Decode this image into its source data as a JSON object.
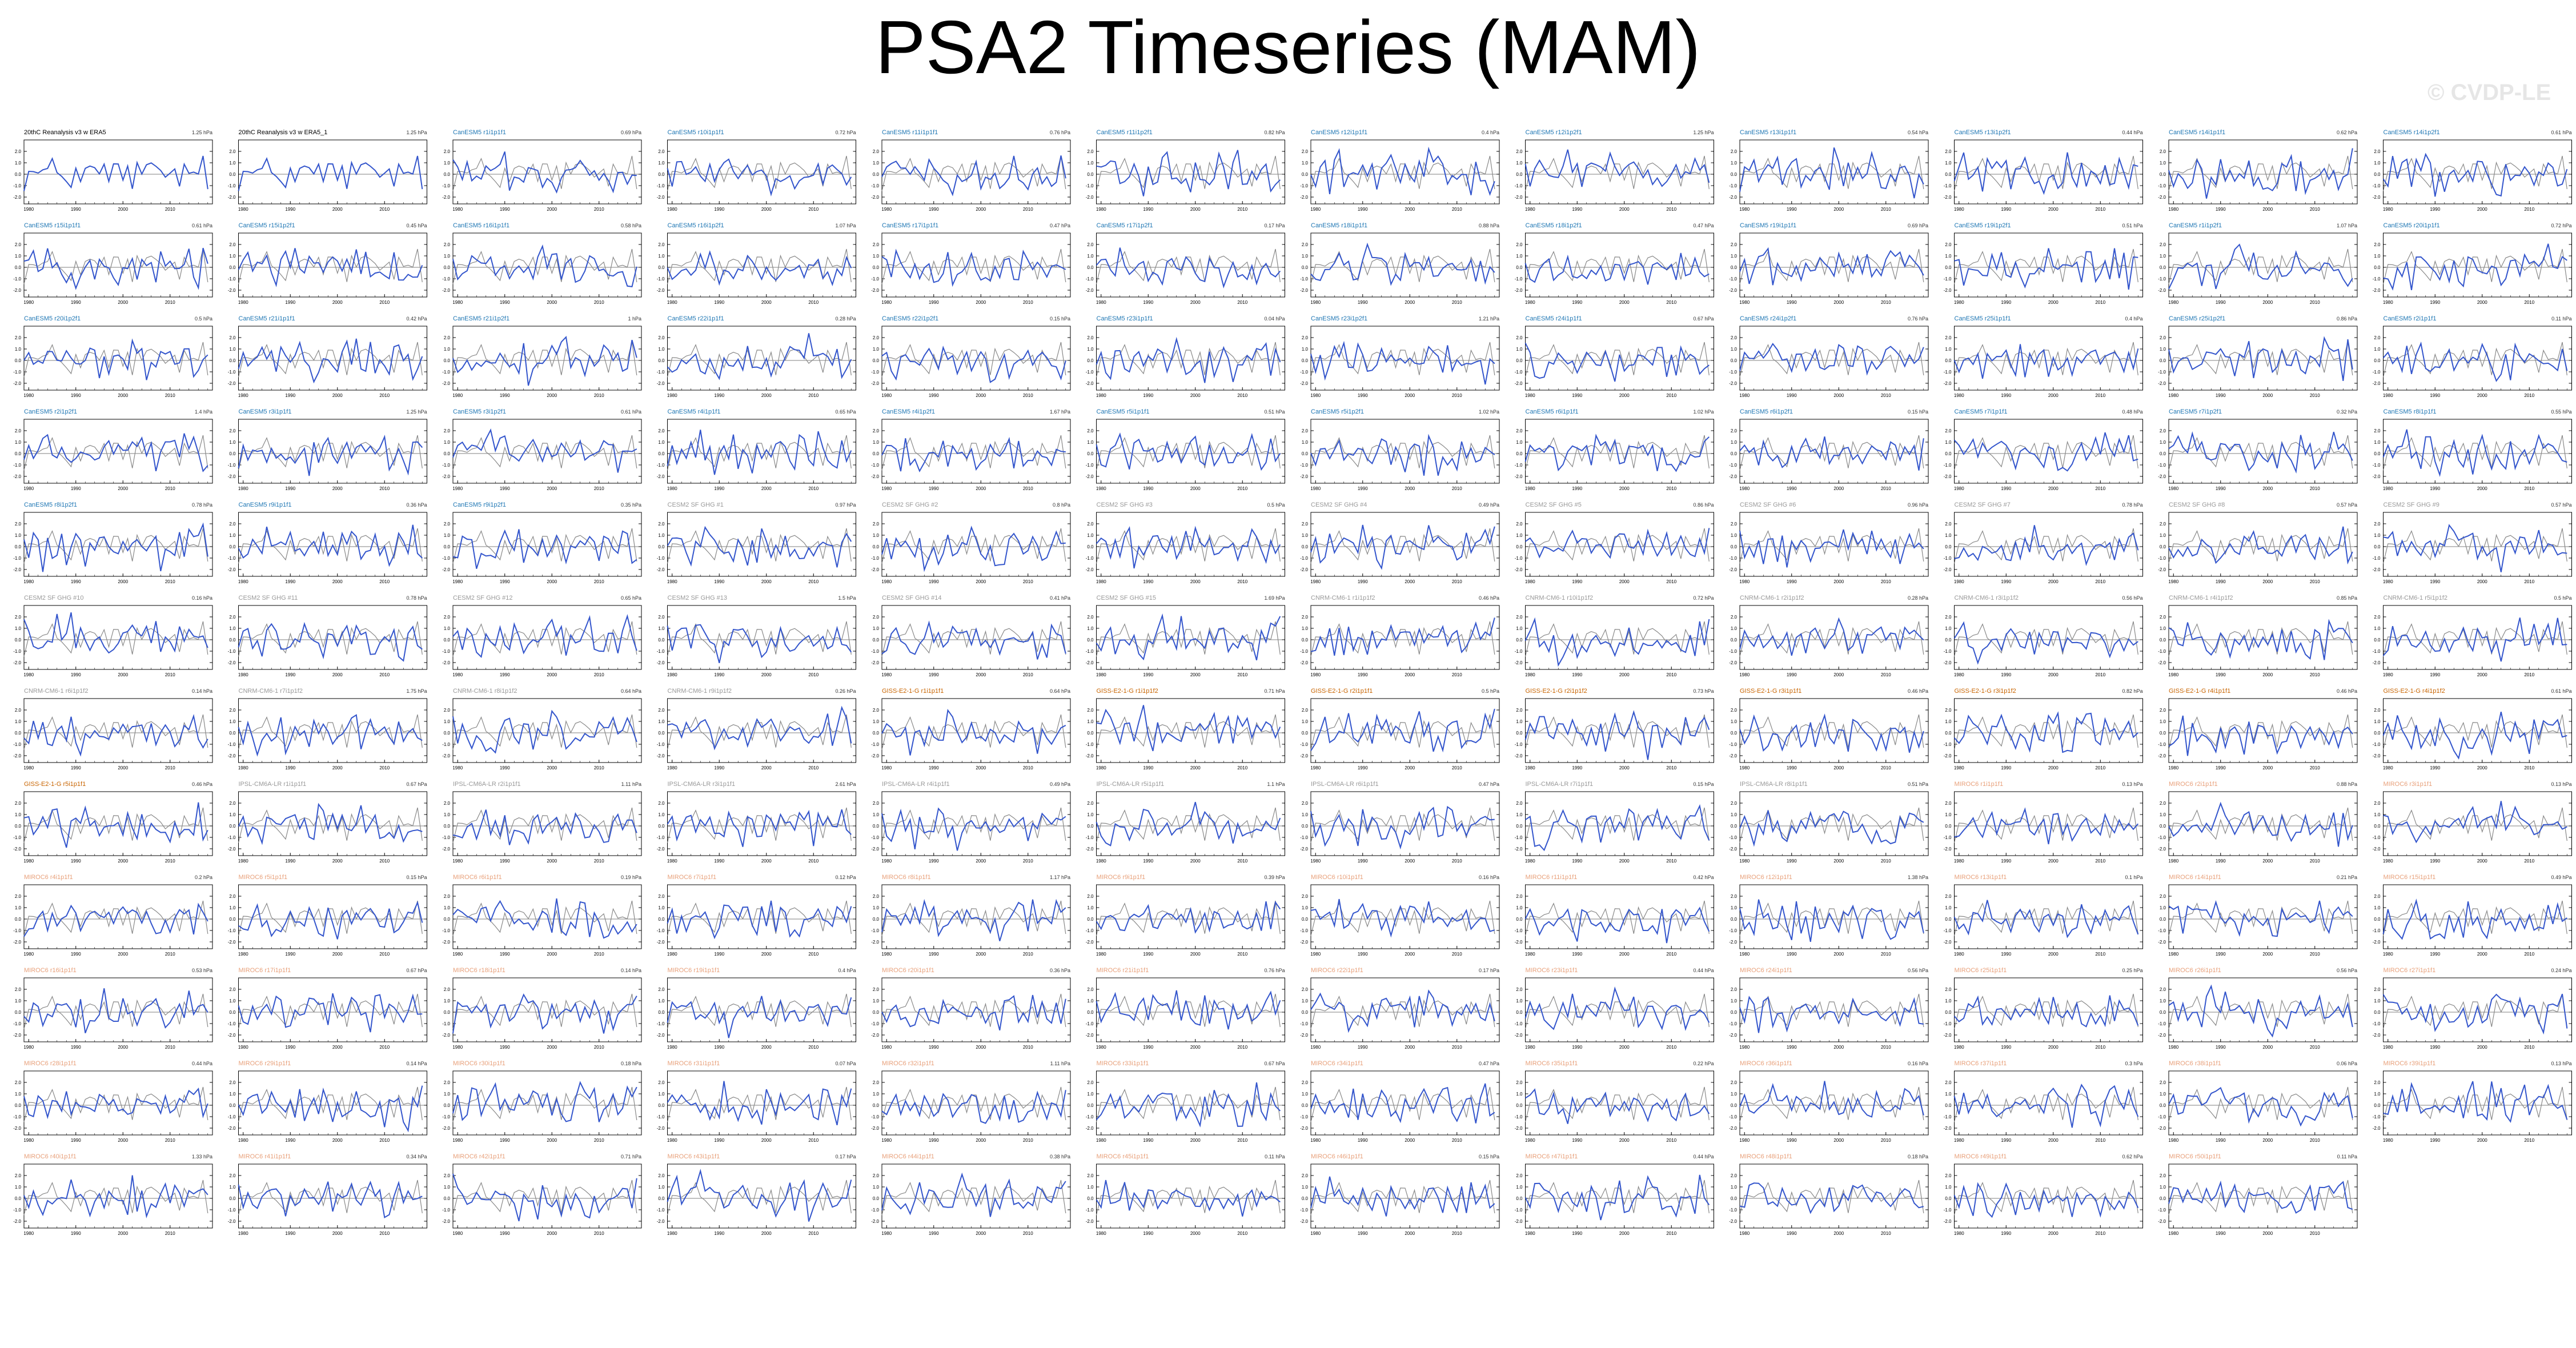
{
  "title": "PSA2 Timeseries (MAM)",
  "watermark": "© CVDP-LE",
  "colors": {
    "member_line": "#3355cc",
    "obs_line": "#888888",
    "title_obs": "#000000",
    "title_cesm": "#1f77b4",
    "title_gfdl": "#999999",
    "title_giss": "#c86400",
    "title_miroc": "#e8a07a"
  },
  "chart_data": {
    "type": "line",
    "layout": "small-multiples",
    "x_ticks": [
      "1980",
      "1990",
      "2000",
      "2010"
    ],
    "y_ticks": [
      "2.0",
      "1.0",
      "0.0",
      "-1.0",
      "-2.0"
    ],
    "ylim": [
      -2.6,
      3.0
    ],
    "xlim": [
      1979,
      2019
    ],
    "panels": [
      {
        "title": "20thC Reanalysis v3 w ERA5",
        "stat": "1.25 hPa",
        "group": "obs"
      },
      {
        "title": "20thC Reanalysis v3 w ERA5_1",
        "stat": "1.25 hPa",
        "group": "obs"
      },
      {
        "title": "CanESM5 r1i1p1f1",
        "stat": "0.69 hPa",
        "group": "cesm"
      },
      {
        "title": "CanESM5 r10i1p1f1",
        "stat": "0.72 hPa",
        "group": "cesm"
      },
      {
        "title": "CanESM5 r11i1p1f1",
        "stat": "0.76 hPa",
        "group": "cesm"
      },
      {
        "title": "CanESM5 r11i1p2f1",
        "stat": "0.82 hPa",
        "group": "cesm"
      },
      {
        "title": "CanESM5 r12i1p1f1",
        "stat": "0.4 hPa",
        "group": "cesm"
      },
      {
        "title": "CanESM5 r12i1p2f1",
        "stat": "1.25 hPa",
        "group": "cesm"
      },
      {
        "title": "CanESM5 r13i1p1f1",
        "stat": "0.54 hPa",
        "group": "cesm"
      },
      {
        "title": "CanESM5 r13i1p2f1",
        "stat": "0.44 hPa",
        "group": "cesm"
      },
      {
        "title": "CanESM5 r14i1p1f1",
        "stat": "0.62 hPa",
        "group": "cesm"
      },
      {
        "title": "CanESM5 r14i1p2f1",
        "stat": "0.61 hPa",
        "group": "cesm"
      },
      {
        "title": "CanESM5 r15i1p1f1",
        "stat": "0.61 hPa",
        "group": "cesm"
      },
      {
        "title": "CanESM5 r15i1p2f1",
        "stat": "0.45 hPa",
        "group": "cesm"
      },
      {
        "title": "CanESM5 r16i1p1f1",
        "stat": "0.58 hPa",
        "group": "cesm"
      },
      {
        "title": "CanESM5 r16i1p2f1",
        "stat": "1.07 hPa",
        "group": "cesm"
      },
      {
        "title": "CanESM5 r17i1p1f1",
        "stat": "0.47 hPa",
        "group": "cesm"
      },
      {
        "title": "CanESM5 r17i1p2f1",
        "stat": "0.17 hPa",
        "group": "cesm"
      },
      {
        "title": "CanESM5 r18i1p1f1",
        "stat": "0.88 hPa",
        "group": "cesm"
      },
      {
        "title": "CanESM5 r18i1p2f1",
        "stat": "0.47 hPa",
        "group": "cesm"
      },
      {
        "title": "CanESM5 r19i1p1f1",
        "stat": "0.69 hPa",
        "group": "cesm"
      },
      {
        "title": "CanESM5 r19i1p2f1",
        "stat": "0.51 hPa",
        "group": "cesm"
      },
      {
        "title": "CanESM5 r1i1p2f1",
        "stat": "1.07 hPa",
        "group": "cesm"
      },
      {
        "title": "CanESM5 r20i1p1f1",
        "stat": "0.72 hPa",
        "group": "cesm"
      },
      {
        "title": "CanESM5 r20i1p2f1",
        "stat": "0.5 hPa",
        "group": "cesm"
      },
      {
        "title": "CanESM5 r21i1p1f1",
        "stat": "0.42 hPa",
        "group": "cesm"
      },
      {
        "title": "CanESM5 r21i1p2f1",
        "stat": "1 hPa",
        "group": "cesm"
      },
      {
        "title": "CanESM5 r22i1p1f1",
        "stat": "0.28 hPa",
        "group": "cesm"
      },
      {
        "title": "CanESM5 r22i1p2f1",
        "stat": "0.15 hPa",
        "group": "cesm"
      },
      {
        "title": "CanESM5 r23i1p1f1",
        "stat": "0.04 hPa",
        "group": "cesm"
      },
      {
        "title": "CanESM5 r23i1p2f1",
        "stat": "1.21 hPa",
        "group": "cesm"
      },
      {
        "title": "CanESM5 r24i1p1f1",
        "stat": "0.67 hPa",
        "group": "cesm"
      },
      {
        "title": "CanESM5 r24i1p2f1",
        "stat": "0.76 hPa",
        "group": "cesm"
      },
      {
        "title": "CanESM5 r25i1p1f1",
        "stat": "0.4 hPa",
        "group": "cesm"
      },
      {
        "title": "CanESM5 r25i1p2f1",
        "stat": "0.86 hPa",
        "group": "cesm"
      },
      {
        "title": "CanESM5 r2i1p1f1",
        "stat": "0.11 hPa",
        "group": "cesm"
      },
      {
        "title": "CanESM5 r2i1p2f1",
        "stat": "1.4 hPa",
        "group": "cesm"
      },
      {
        "title": "CanESM5 r3i1p1f1",
        "stat": "1.25 hPa",
        "group": "cesm"
      },
      {
        "title": "CanESM5 r3i1p2f1",
        "stat": "0.61 hPa",
        "group": "cesm"
      },
      {
        "title": "CanESM5 r4i1p1f1",
        "stat": "0.65 hPa",
        "group": "cesm"
      },
      {
        "title": "CanESM5 r4i1p2f1",
        "stat": "1.67 hPa",
        "group": "cesm"
      },
      {
        "title": "CanESM5 r5i1p1f1",
        "stat": "0.51 hPa",
        "group": "cesm"
      },
      {
        "title": "CanESM5 r5i1p2f1",
        "stat": "1.02 hPa",
        "group": "cesm"
      },
      {
        "title": "CanESM5 r6i1p1f1",
        "stat": "1.02 hPa",
        "group": "cesm"
      },
      {
        "title": "CanESM5 r6i1p2f1",
        "stat": "0.15 hPa",
        "group": "cesm"
      },
      {
        "title": "CanESM5 r7i1p1f1",
        "stat": "0.48 hPa",
        "group": "cesm"
      },
      {
        "title": "CanESM5 r7i1p2f1",
        "stat": "0.32 hPa",
        "group": "cesm"
      },
      {
        "title": "CanESM5 r8i1p1f1",
        "stat": "0.55 hPa",
        "group": "cesm"
      },
      {
        "title": "CanESM5 r8i1p2f1",
        "stat": "0.78 hPa",
        "group": "cesm"
      },
      {
        "title": "CanESM5 r9i1p1f1",
        "stat": "0.36 hPa",
        "group": "cesm"
      },
      {
        "title": "CanESM5 r9i1p2f1",
        "stat": "0.35 hPa",
        "group": "cesm"
      },
      {
        "title": "CESM2 SF GHG #1",
        "stat": "0.97 hPa",
        "group": "gfdl"
      },
      {
        "title": "CESM2 SF GHG #2",
        "stat": "0.8 hPa",
        "group": "gfdl"
      },
      {
        "title": "CESM2 SF GHG #3",
        "stat": "0.5 hPa",
        "group": "gfdl"
      },
      {
        "title": "CESM2 SF GHG #4",
        "stat": "0.49 hPa",
        "group": "gfdl"
      },
      {
        "title": "CESM2 SF GHG #5",
        "stat": "0.86 hPa",
        "group": "gfdl"
      },
      {
        "title": "CESM2 SF GHG #6",
        "stat": "0.96 hPa",
        "group": "gfdl"
      },
      {
        "title": "CESM2 SF GHG #7",
        "stat": "0.78 hPa",
        "group": "gfdl"
      },
      {
        "title": "CESM2 SF GHG #8",
        "stat": "0.57 hPa",
        "group": "gfdl"
      },
      {
        "title": "CESM2 SF GHG #9",
        "stat": "0.57 hPa",
        "group": "gfdl"
      },
      {
        "title": "CESM2 SF GHG #10",
        "stat": "0.16 hPa",
        "group": "gfdl"
      },
      {
        "title": "CESM2 SF GHG #11",
        "stat": "0.78 hPa",
        "group": "gfdl"
      },
      {
        "title": "CESM2 SF GHG #12",
        "stat": "0.65 hPa",
        "group": "gfdl"
      },
      {
        "title": "CESM2 SF GHG #13",
        "stat": "1.5 hPa",
        "group": "gfdl"
      },
      {
        "title": "CESM2 SF GHG #14",
        "stat": "0.41 hPa",
        "group": "gfdl"
      },
      {
        "title": "CESM2 SF GHG #15",
        "stat": "1.69 hPa",
        "group": "gfdl"
      },
      {
        "title": "CNRM-CM6-1 r1i1p1f2",
        "stat": "0.46 hPa",
        "group": "gfdl"
      },
      {
        "title": "CNRM-CM6-1 r10i1p1f2",
        "stat": "0.72 hPa",
        "group": "gfdl"
      },
      {
        "title": "CNRM-CM6-1 r2i1p1f2",
        "stat": "0.28 hPa",
        "group": "gfdl"
      },
      {
        "title": "CNRM-CM6-1 r3i1p1f2",
        "stat": "0.56 hPa",
        "group": "gfdl"
      },
      {
        "title": "CNRM-CM6-1 r4i1p1f2",
        "stat": "0.85 hPa",
        "group": "gfdl"
      },
      {
        "title": "CNRM-CM6-1 r5i1p1f2",
        "stat": "0.5 hPa",
        "group": "gfdl"
      },
      {
        "title": "CNRM-CM6-1 r6i1p1f2",
        "stat": "0.14 hPa",
        "group": "gfdl"
      },
      {
        "title": "CNRM-CM6-1 r7i1p1f2",
        "stat": "1.75 hPa",
        "group": "gfdl"
      },
      {
        "title": "CNRM-CM6-1 r8i1p1f2",
        "stat": "0.64 hPa",
        "group": "gfdl"
      },
      {
        "title": "CNRM-CM6-1 r9i1p1f2",
        "stat": "0.26 hPa",
        "group": "gfdl"
      },
      {
        "title": "GISS-E2-1-G r1i1p1f1",
        "stat": "0.64 hPa",
        "group": "giss"
      },
      {
        "title": "GISS-E2-1-G r1i1p1f2",
        "stat": "0.71 hPa",
        "group": "giss"
      },
      {
        "title": "GISS-E2-1-G r2i1p1f1",
        "stat": "0.5 hPa",
        "group": "giss"
      },
      {
        "title": "GISS-E2-1-G r2i1p1f2",
        "stat": "0.73 hPa",
        "group": "giss"
      },
      {
        "title": "GISS-E2-1-G r3i1p1f1",
        "stat": "0.46 hPa",
        "group": "giss"
      },
      {
        "title": "GISS-E2-1-G r3i1p1f2",
        "stat": "0.82 hPa",
        "group": "giss"
      },
      {
        "title": "GISS-E2-1-G r4i1p1f1",
        "stat": "0.46 hPa",
        "group": "giss"
      },
      {
        "title": "GISS-E2-1-G r4i1p1f2",
        "stat": "0.61 hPa",
        "group": "giss"
      },
      {
        "title": "GISS-E2-1-G r5i1p1f1",
        "stat": "0.46 hPa",
        "group": "giss"
      },
      {
        "title": "IPSL-CM6A-LR r1i1p1f1",
        "stat": "0.67 hPa",
        "group": "gfdl"
      },
      {
        "title": "IPSL-CM6A-LR r2i1p1f1",
        "stat": "1.11 hPa",
        "group": "gfdl"
      },
      {
        "title": "IPSL-CM6A-LR r3i1p1f1",
        "stat": "2.61 hPa",
        "group": "gfdl"
      },
      {
        "title": "IPSL-CM6A-LR r4i1p1f1",
        "stat": "0.49 hPa",
        "group": "gfdl"
      },
      {
        "title": "IPSL-CM6A-LR r5i1p1f1",
        "stat": "1.1 hPa",
        "group": "gfdl"
      },
      {
        "title": "IPSL-CM6A-LR r6i1p1f1",
        "stat": "0.47 hPa",
        "group": "gfdl"
      },
      {
        "title": "IPSL-CM6A-LR r7i1p1f1",
        "stat": "0.15 hPa",
        "group": "gfdl"
      },
      {
        "title": "IPSL-CM6A-LR r8i1p1f1",
        "stat": "0.51 hPa",
        "group": "gfdl"
      },
      {
        "title": "MIROC6 r1i1p1f1",
        "stat": "0.13 hPa",
        "group": "miroc"
      },
      {
        "title": "MIROC6 r2i1p1f1",
        "stat": "0.88 hPa",
        "group": "miroc"
      },
      {
        "title": "MIROC6 r3i1p1f1",
        "stat": "0.13 hPa",
        "group": "miroc"
      },
      {
        "title": "MIROC6 r4i1p1f1",
        "stat": "0.2 hPa",
        "group": "miroc"
      },
      {
        "title": "MIROC6 r5i1p1f1",
        "stat": "0.15 hPa",
        "group": "miroc"
      },
      {
        "title": "MIROC6 r6i1p1f1",
        "stat": "0.19 hPa",
        "group": "miroc"
      },
      {
        "title": "MIROC6 r7i1p1f1",
        "stat": "0.12 hPa",
        "group": "miroc"
      },
      {
        "title": "MIROC6 r8i1p1f1",
        "stat": "1.17 hPa",
        "group": "miroc"
      },
      {
        "title": "MIROC6 r9i1p1f1",
        "stat": "0.39 hPa",
        "group": "miroc"
      },
      {
        "title": "MIROC6 r10i1p1f1",
        "stat": "0.16 hPa",
        "group": "miroc"
      },
      {
        "title": "MIROC6 r11i1p1f1",
        "stat": "0.42 hPa",
        "group": "miroc"
      },
      {
        "title": "MIROC6 r12i1p1f1",
        "stat": "1.38 hPa",
        "group": "miroc"
      },
      {
        "title": "MIROC6 r13i1p1f1",
        "stat": "0.1 hPa",
        "group": "miroc"
      },
      {
        "title": "MIROC6 r14i1p1f1",
        "stat": "0.21 hPa",
        "group": "miroc"
      },
      {
        "title": "MIROC6 r15i1p1f1",
        "stat": "0.49 hPa",
        "group": "miroc"
      },
      {
        "title": "MIROC6 r16i1p1f1",
        "stat": "0.53 hPa",
        "group": "miroc"
      },
      {
        "title": "MIROC6 r17i1p1f1",
        "stat": "0.67 hPa",
        "group": "miroc"
      },
      {
        "title": "MIROC6 r18i1p1f1",
        "stat": "0.14 hPa",
        "group": "miroc"
      },
      {
        "title": "MIROC6 r19i1p1f1",
        "stat": "0.4 hPa",
        "group": "miroc"
      },
      {
        "title": "MIROC6 r20i1p1f1",
        "stat": "0.36 hPa",
        "group": "miroc"
      },
      {
        "title": "MIROC6 r21i1p1f1",
        "stat": "0.76 hPa",
        "group": "miroc"
      },
      {
        "title": "MIROC6 r22i1p1f1",
        "stat": "0.17 hPa",
        "group": "miroc"
      },
      {
        "title": "MIROC6 r23i1p1f1",
        "stat": "0.44 hPa",
        "group": "miroc"
      },
      {
        "title": "MIROC6 r24i1p1f1",
        "stat": "0.56 hPa",
        "group": "miroc"
      },
      {
        "title": "MIROC6 r25i1p1f1",
        "stat": "0.25 hPa",
        "group": "miroc"
      },
      {
        "title": "MIROC6 r26i1p1f1",
        "stat": "0.56 hPa",
        "group": "miroc"
      },
      {
        "title": "MIROC6 r27i1p1f1",
        "stat": "0.24 hPa",
        "group": "miroc"
      },
      {
        "title": "MIROC6 r28i1p1f1",
        "stat": "0.44 hPa",
        "group": "miroc"
      },
      {
        "title": "MIROC6 r29i1p1f1",
        "stat": "0.14 hPa",
        "group": "miroc"
      },
      {
        "title": "MIROC6 r30i1p1f1",
        "stat": "0.18 hPa",
        "group": "miroc"
      },
      {
        "title": "MIROC6 r31i1p1f1",
        "stat": "0.07 hPa",
        "group": "miroc"
      },
      {
        "title": "MIROC6 r32i1p1f1",
        "stat": "1.11 hPa",
        "group": "miroc"
      },
      {
        "title": "MIROC6 r33i1p1f1",
        "stat": "0.67 hPa",
        "group": "miroc"
      },
      {
        "title": "MIROC6 r34i1p1f1",
        "stat": "0.47 hPa",
        "group": "miroc"
      },
      {
        "title": "MIROC6 r35i1p1f1",
        "stat": "0.22 hPa",
        "group": "miroc"
      },
      {
        "title": "MIROC6 r36i1p1f1",
        "stat": "0.16 hPa",
        "group": "miroc"
      },
      {
        "title": "MIROC6 r37i1p1f1",
        "stat": "0.3 hPa",
        "group": "miroc"
      },
      {
        "title": "MIROC6 r38i1p1f1",
        "stat": "0.06 hPa",
        "group": "miroc"
      },
      {
        "title": "MIROC6 r39i1p1f1",
        "stat": "0.13 hPa",
        "group": "miroc"
      },
      {
        "title": "MIROC6 r40i1p1f1",
        "stat": "1.33 hPa",
        "group": "miroc"
      },
      {
        "title": "MIROC6 r41i1p1f1",
        "stat": "0.34 hPa",
        "group": "miroc"
      },
      {
        "title": "MIROC6 r42i1p1f1",
        "stat": "0.71 hPa",
        "group": "miroc"
      },
      {
        "title": "MIROC6 r43i1p1f1",
        "stat": "0.17 hPa",
        "group": "miroc"
      },
      {
        "title": "MIROC6 r44i1p1f1",
        "stat": "0.38 hPa",
        "group": "miroc"
      },
      {
        "title": "MIROC6 r45i1p1f1",
        "stat": "0.11 hPa",
        "group": "miroc"
      },
      {
        "title": "MIROC6 r46i1p1f1",
        "stat": "0.15 hPa",
        "group": "miroc"
      },
      {
        "title": "MIROC6 r47i1p1f1",
        "stat": "0.44 hPa",
        "group": "miroc"
      },
      {
        "title": "MIROC6 r48i1p1f1",
        "stat": "0.18 hPa",
        "group": "miroc"
      },
      {
        "title": "MIROC6 r49i1p1f1",
        "stat": "0.62 hPa",
        "group": "miroc"
      },
      {
        "title": "MIROC6 r50i1p1f1",
        "stat": "0.11 hPa",
        "group": "miroc"
      }
    ]
  }
}
